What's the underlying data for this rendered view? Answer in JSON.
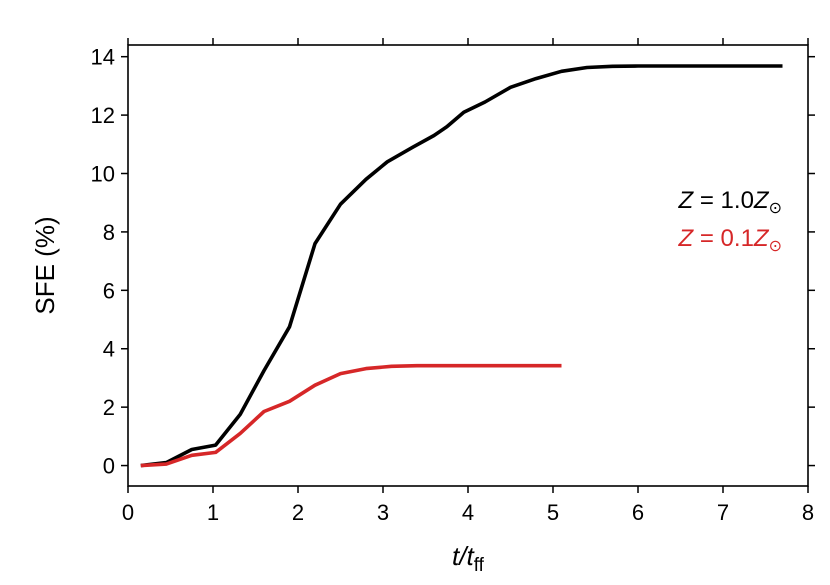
{
  "chart_data": {
    "type": "line",
    "xlabel": "t/t_ff",
    "ylabel": "SFE (%)",
    "xlim": [
      0,
      8
    ],
    "ylim": [
      -0.7,
      14.4
    ],
    "xticks": [
      0,
      1,
      2,
      3,
      4,
      5,
      6,
      7,
      8
    ],
    "yticks": [
      0,
      2,
      4,
      6,
      8,
      10,
      12,
      14
    ],
    "grid": false,
    "legend_position": "right",
    "series": [
      {
        "name": "Z = 1.0Z⊙",
        "color": "#000000",
        "x": [
          0.15,
          0.45,
          0.75,
          1.03,
          1.32,
          1.6,
          1.9,
          2.2,
          2.5,
          2.8,
          3.05,
          3.35,
          3.6,
          3.75,
          3.95,
          4.2,
          4.5,
          4.8,
          5.1,
          5.4,
          5.7,
          6.0,
          6.5,
          7.0,
          7.7
        ],
        "y": [
          0.0,
          0.1,
          0.55,
          0.7,
          1.75,
          3.25,
          4.75,
          7.6,
          8.95,
          9.8,
          10.4,
          10.9,
          11.3,
          11.6,
          12.1,
          12.45,
          12.95,
          13.25,
          13.5,
          13.63,
          13.67,
          13.68,
          13.68,
          13.68,
          13.68
        ]
      },
      {
        "name": "Z = 0.1Z⊙",
        "color": "#d62728",
        "x": [
          0.15,
          0.45,
          0.75,
          1.03,
          1.32,
          1.6,
          1.9,
          2.2,
          2.5,
          2.8,
          3.1,
          3.4,
          4.0,
          4.5,
          5.1
        ],
        "y": [
          0.0,
          0.05,
          0.35,
          0.45,
          1.1,
          1.85,
          2.2,
          2.75,
          3.15,
          3.32,
          3.4,
          3.42,
          3.42,
          3.42,
          3.42
        ]
      }
    ]
  }
}
